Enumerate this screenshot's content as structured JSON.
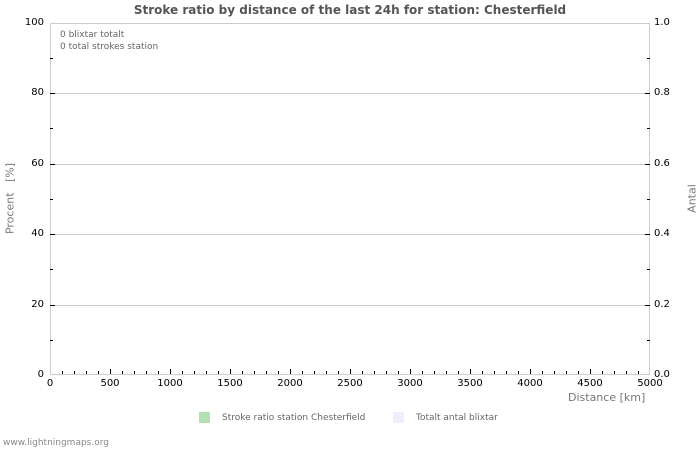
{
  "chart_data": {
    "type": "bar",
    "title": "Stroke ratio by distance of the last 24h for station: Chesterfield",
    "xlabel": "Distance   [km]",
    "ylabel": "Procent   [%]",
    "y2label": "Antal",
    "xlim": [
      0,
      5000
    ],
    "ylim": [
      0,
      100
    ],
    "y2lim": [
      0.0,
      1.0
    ],
    "x_ticks": [
      "0",
      "500",
      "1000",
      "1500",
      "2000",
      "2500",
      "3000",
      "3500",
      "4000",
      "4500",
      "5000"
    ],
    "y_ticks": [
      "0",
      "20",
      "40",
      "60",
      "80",
      "100"
    ],
    "y2_ticks": [
      "0.0",
      "0.2",
      "0.4",
      "0.6",
      "0.8",
      "1.0"
    ],
    "grid": true,
    "legend_position": "bottom",
    "series": [
      {
        "name": "Stroke ratio station Chesterfield",
        "color": "#b3e0b3",
        "values": []
      },
      {
        "name": "Totalt antal blixtar",
        "color": "#eeeeff",
        "values": []
      }
    ],
    "annotations": [
      "0 blixtar totalt",
      "0 total strokes station"
    ]
  },
  "info": {
    "line1": "0 blixtar totalt",
    "line2": "0 total strokes station"
  },
  "legend": {
    "item1": "Stroke ratio station Chesterfield",
    "item2": "Totalt antal blixtar"
  },
  "footer": "www.lightningmaps.org"
}
